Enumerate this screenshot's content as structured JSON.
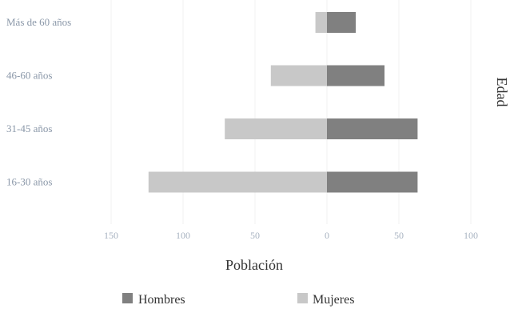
{
  "chart_data": {
    "type": "bar",
    "orientation": "horizontal",
    "subtype": "population-pyramid",
    "categories": [
      "16-30 años",
      "31-45 años",
      "46-60 años",
      "Más de 60 años"
    ],
    "series": [
      {
        "name": "Hombres",
        "values": [
          63,
          63,
          40,
          20
        ],
        "color": "#808080"
      },
      {
        "name": "Mujeres",
        "values": [
          124,
          71,
          39,
          8
        ],
        "color": "#c8c8c8"
      }
    ],
    "xlabel": "Población",
    "ylabel": "Edad",
    "xlim": [
      -150,
      100
    ],
    "x_ticks": [
      -150,
      -100,
      -50,
      0,
      50,
      100
    ],
    "x_tick_labels": [
      "150",
      "100",
      "50",
      "0",
      "50",
      "100"
    ],
    "grid": true,
    "legend_position": "bottom"
  }
}
